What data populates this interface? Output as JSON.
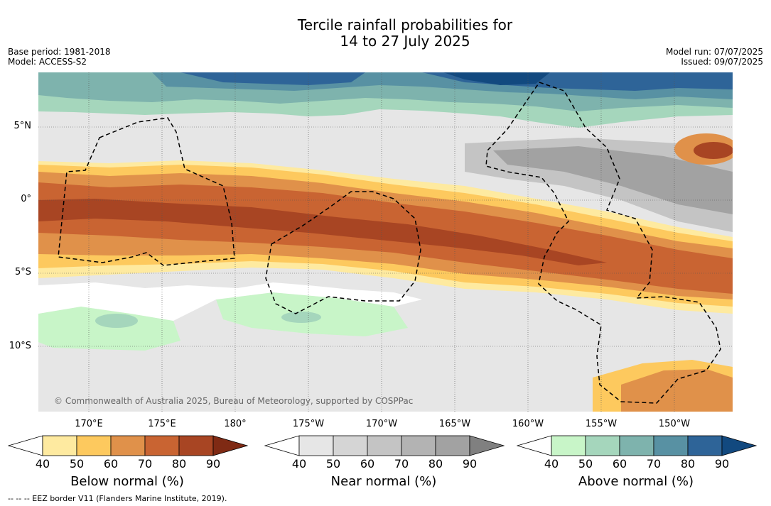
{
  "title": {
    "line1": "Tercile rainfall probabilities for",
    "line2": "14 to 27 July 2025"
  },
  "meta_left": {
    "base_period": "Base period: 1981-2018",
    "model": "Model: ACCESS-S2"
  },
  "meta_right": {
    "model_run": "Model run: 07/07/2025",
    "issued": "Issued: 09/07/2025"
  },
  "map": {
    "lat_labels": [
      "5°N",
      "0°",
      "5°S",
      "10°S"
    ],
    "lon_labels": [
      "170°E",
      "175°E",
      "180°",
      "175°W",
      "170°W",
      "165°W",
      "160°W",
      "155°W",
      "150°W"
    ],
    "copyright": "© Commonwealth of Australia 2025, Bureau of Meteorology, supported by COSPPac"
  },
  "colorbars": [
    {
      "title": "Below normal (%)",
      "ticks": [
        "40",
        "50",
        "60",
        "70",
        "80",
        "90"
      ],
      "colors": [
        "#ffffff",
        "#feeaa0",
        "#fdc95e",
        "#e0914a",
        "#c96432",
        "#a84523",
        "#7f2a14"
      ]
    },
    {
      "title": "Near normal (%)",
      "ticks": [
        "40",
        "50",
        "60",
        "70",
        "80",
        "90"
      ],
      "colors": [
        "#ffffff",
        "#e6e6e6",
        "#d5d5d5",
        "#c4c4c4",
        "#b3b3b3",
        "#a2a2a2",
        "#808080"
      ]
    },
    {
      "title": "Above normal (%)",
      "ticks": [
        "40",
        "50",
        "60",
        "70",
        "80",
        "90"
      ],
      "colors": [
        "#ffffff",
        "#c8f5c8",
        "#a5d6bc",
        "#7eb3ad",
        "#5891a3",
        "#2e6498",
        "#12497f"
      ]
    }
  ],
  "footnote": "--  --  -- EEZ border V11 (Flanders Marine Institute, 2019)."
}
